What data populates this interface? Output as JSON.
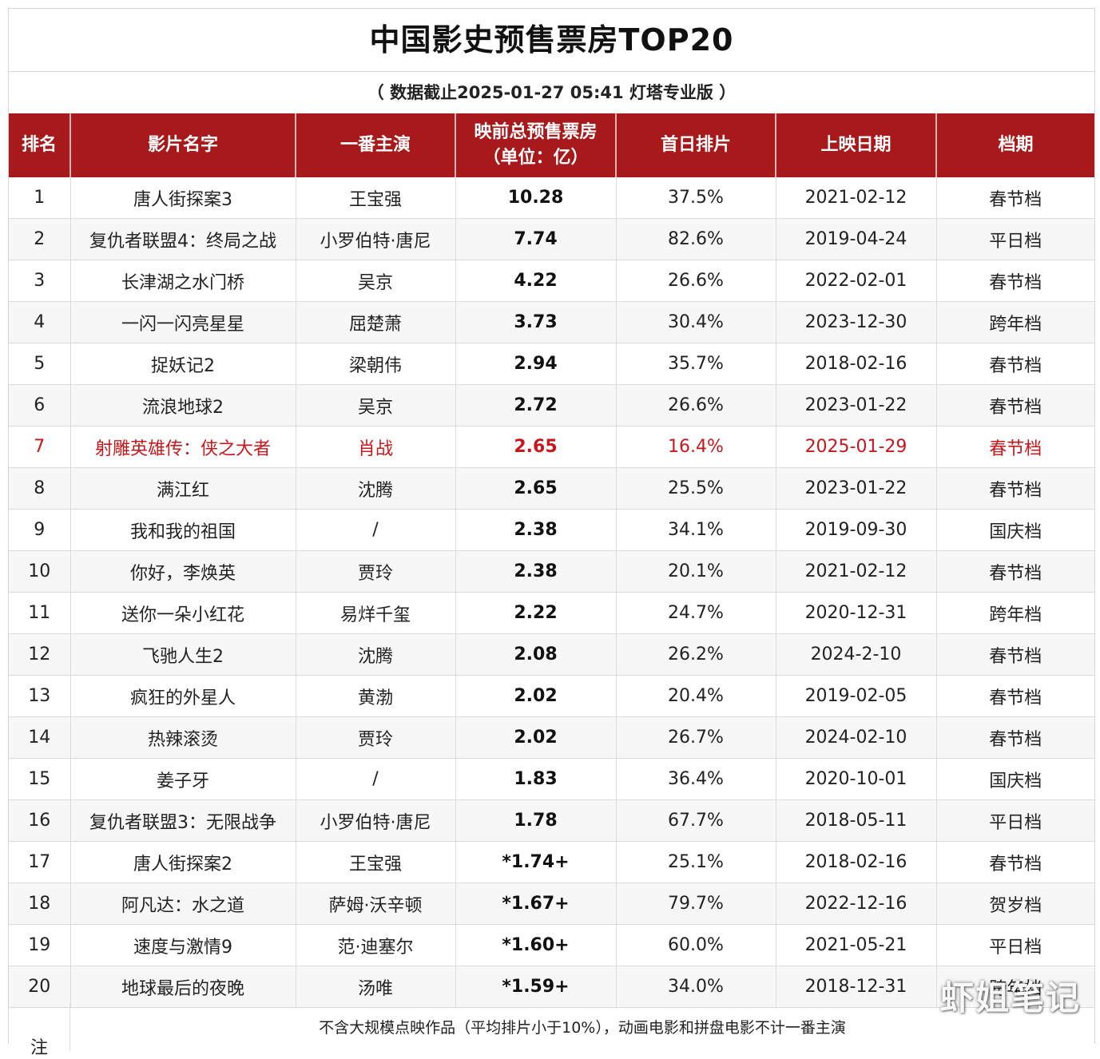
{
  "title": "中国影史预售票房TOP20",
  "subtitle": "（ 数据截止2025-01-27 05:41 灯塔专业版 ）",
  "columns": {
    "rank": "排名",
    "name": "影片名字",
    "lead": "一番主演",
    "presale_line1": "映前总预售票房",
    "presale_line2": "（单位：亿）",
    "share": "首日排片",
    "date": "上映日期",
    "slot": "档期"
  },
  "rows": [
    {
      "rank": "1",
      "name": "唐人街探案3",
      "lead": "王宝强",
      "presale": "10.28",
      "share": "37.5%",
      "date": "2021-02-12",
      "slot": "春节档"
    },
    {
      "rank": "2",
      "name": "复仇者联盟4：终局之战",
      "lead": "小罗伯特·唐尼",
      "presale": "7.74",
      "share": "82.6%",
      "date": "2019-04-24",
      "slot": "平日档"
    },
    {
      "rank": "3",
      "name": "长津湖之水门桥",
      "lead": "吴京",
      "presale": "4.22",
      "share": "26.6%",
      "date": "2022-02-01",
      "slot": "春节档"
    },
    {
      "rank": "4",
      "name": "一闪一闪亮星星",
      "lead": "屈楚萧",
      "presale": "3.73",
      "share": "30.4%",
      "date": "2023-12-30",
      "slot": "跨年档"
    },
    {
      "rank": "5",
      "name": "捉妖记2",
      "lead": "梁朝伟",
      "presale": "2.94",
      "share": "35.7%",
      "date": "2018-02-16",
      "slot": "春节档"
    },
    {
      "rank": "6",
      "name": "流浪地球2",
      "lead": "吴京",
      "presale": "2.72",
      "share": "26.6%",
      "date": "2023-01-22",
      "slot": "春节档"
    },
    {
      "rank": "7",
      "name": "射雕英雄传：侠之大者",
      "lead": "肖战",
      "presale": "2.65",
      "share": "16.4%",
      "date": "2025-01-29",
      "slot": "春节档"
    },
    {
      "rank": "8",
      "name": "满江红",
      "lead": "沈腾",
      "presale": "2.65",
      "share": "25.5%",
      "date": "2023-01-22",
      "slot": "春节档"
    },
    {
      "rank": "9",
      "name": "我和我的祖国",
      "lead": "/",
      "presale": "2.38",
      "share": "34.1%",
      "date": "2019-09-30",
      "slot": "国庆档"
    },
    {
      "rank": "10",
      "name": "你好，李焕英",
      "lead": "贾玲",
      "presale": "2.38",
      "share": "20.1%",
      "date": "2021-02-12",
      "slot": "春节档"
    },
    {
      "rank": "11",
      "name": "送你一朵小红花",
      "lead": "易烊千玺",
      "presale": "2.22",
      "share": "24.7%",
      "date": "2020-12-31",
      "slot": "跨年档"
    },
    {
      "rank": "12",
      "name": "飞驰人生2",
      "lead": "沈腾",
      "presale": "2.08",
      "share": "26.2%",
      "date": "2024-2-10",
      "slot": "春节档"
    },
    {
      "rank": "13",
      "name": "疯狂的外星人",
      "lead": "黄渤",
      "presale": "2.02",
      "share": "20.4%",
      "date": "2019-02-05",
      "slot": "春节档"
    },
    {
      "rank": "14",
      "name": "热辣滚烫",
      "lead": "贾玲",
      "presale": "2.02",
      "share": "26.7%",
      "date": "2024-02-10",
      "slot": "春节档"
    },
    {
      "rank": "15",
      "name": "姜子牙",
      "lead": "/",
      "presale": "1.83",
      "share": "36.4%",
      "date": "2020-10-01",
      "slot": "国庆档"
    },
    {
      "rank": "16",
      "name": "复仇者联盟3：无限战争",
      "lead": "小罗伯特·唐尼",
      "presale": "1.78",
      "share": "67.7%",
      "date": "2018-05-11",
      "slot": "平日档"
    },
    {
      "rank": "17",
      "name": "唐人街探案2",
      "lead": "王宝强",
      "presale": "*1.74+",
      "share": "25.1%",
      "date": "2018-02-16",
      "slot": "春节档"
    },
    {
      "rank": "18",
      "name": "阿凡达：水之道",
      "lead": "萨姆·沃辛顿",
      "presale": "*1.67+",
      "share": "79.7%",
      "date": "2022-12-16",
      "slot": "贺岁档"
    },
    {
      "rank": "19",
      "name": "速度与激情9",
      "lead": "范·迪塞尔",
      "presale": "*1.60+",
      "share": "60.0%",
      "date": "2021-05-21",
      "slot": "平日档"
    },
    {
      "rank": "20",
      "name": "地球最后的夜晚",
      "lead": "汤唯",
      "presale": "*1.59+",
      "share": "34.0%",
      "date": "2018-12-31",
      "slot": "跨年档"
    }
  ],
  "highlight_rank": "7",
  "highlight_color": "#c8171c",
  "header_color": "#a8191b",
  "note": {
    "label": "注",
    "text": "不含大规模点映作品（平均排片小于10%），动画电影和拼盘电影不计一番主演"
  },
  "watermark": "虾姐笔记"
}
